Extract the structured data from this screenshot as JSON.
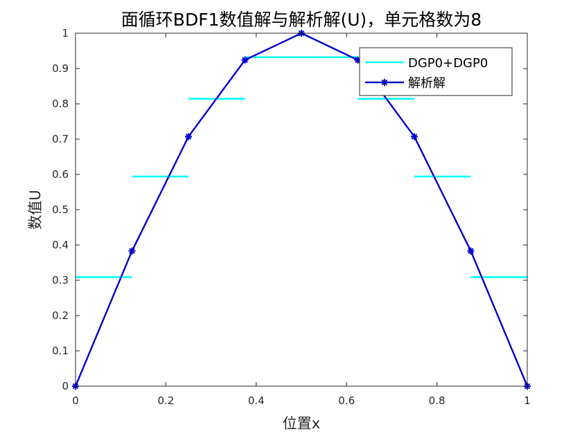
{
  "chart_data": {
    "type": "line",
    "title": "面循环BDF1数值解与解析解(U)，单元格数为8",
    "xlabel": "位置x",
    "ylabel": "数值U",
    "xlim": [
      0,
      1
    ],
    "ylim": [
      0,
      1
    ],
    "x_ticks": [
      "0",
      "0.2",
      "0.4",
      "0.6",
      "0.8",
      "1"
    ],
    "y_ticks": [
      "0",
      "0.1",
      "0.2",
      "0.3",
      "0.4",
      "0.5",
      "0.6",
      "0.7",
      "0.8",
      "0.9",
      "1"
    ],
    "grid": false,
    "legend_position": "top-right",
    "series": [
      {
        "name": "DGP0+DGP0",
        "style": "step",
        "color": "#00ffff",
        "segments": [
          {
            "x0": 0,
            "x1": 0.125,
            "y": 0.309
          },
          {
            "x0": 0.125,
            "x1": 0.25,
            "y": 0.594
          },
          {
            "x0": 0.25,
            "x1": 0.375,
            "y": 0.814
          },
          {
            "x0": 0.375,
            "x1": 0.5,
            "y": 0.932
          },
          {
            "x0": 0.5,
            "x1": 0.625,
            "y": 0.932
          },
          {
            "x0": 0.625,
            "x1": 0.75,
            "y": 0.814
          },
          {
            "x0": 0.75,
            "x1": 0.875,
            "y": 0.594
          },
          {
            "x0": 0.875,
            "x1": 1,
            "y": 0.309
          }
        ]
      },
      {
        "name": "解析解",
        "style": "line-marker",
        "color": "#0000cc",
        "x": [
          0,
          0.125,
          0.25,
          0.375,
          0.5,
          0.625,
          0.75,
          0.875,
          1
        ],
        "y": [
          0,
          0.383,
          0.707,
          0.924,
          1,
          0.924,
          0.707,
          0.383,
          0
        ]
      }
    ]
  }
}
